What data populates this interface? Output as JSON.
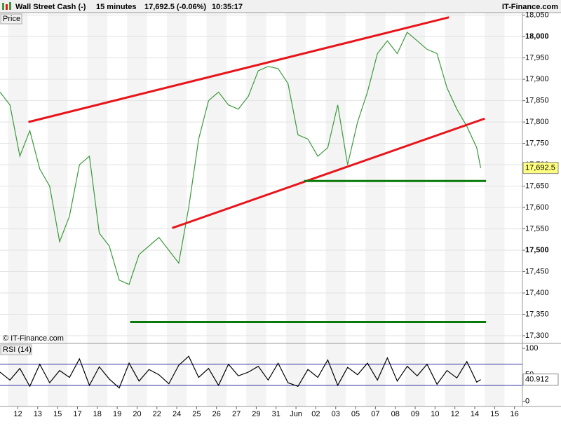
{
  "header": {
    "instrument": "Wall Street Cash (-)",
    "interval": "15 minutes",
    "quote": "17,692.5 (-0.06%)",
    "time": "10:35:17",
    "brand": "IT-Finance.com"
  },
  "chart_data": [
    {
      "type": "line",
      "title": "Price",
      "watermark": "© IT-Finance.com",
      "xlim": [
        -0.9,
        25.4
      ],
      "xticks": [
        {
          "value": 0,
          "label": "12"
        },
        {
          "value": 1,
          "label": "13"
        },
        {
          "value": 2,
          "label": "15"
        },
        {
          "value": 3,
          "label": "17"
        },
        {
          "value": 4,
          "label": "18"
        },
        {
          "value": 5,
          "label": "19"
        },
        {
          "value": 6,
          "label": "20"
        },
        {
          "value": 7,
          "label": "22"
        },
        {
          "value": 8,
          "label": "24"
        },
        {
          "value": 9,
          "label": "25"
        },
        {
          "value": 10,
          "label": "26"
        },
        {
          "value": 11,
          "label": "27"
        },
        {
          "value": 12,
          "label": "29"
        },
        {
          "value": 13,
          "label": "31"
        },
        {
          "value": 14,
          "label": "Jun"
        },
        {
          "value": 15,
          "label": "02"
        },
        {
          "value": 16,
          "label": "03"
        },
        {
          "value": 17,
          "label": "05"
        },
        {
          "value": 18,
          "label": "07"
        },
        {
          "value": 19,
          "label": "08"
        },
        {
          "value": 20,
          "label": "09"
        },
        {
          "value": 21,
          "label": "10"
        },
        {
          "value": 22,
          "label": "12"
        },
        {
          "value": 23,
          "label": "14"
        },
        {
          "value": 24,
          "label": "15"
        },
        {
          "value": 25,
          "label": "16"
        }
      ],
      "ylim": [
        17282,
        18056
      ],
      "yticks": [
        {
          "value": 17300,
          "label": "17,300"
        },
        {
          "value": 17350,
          "label": "17,350"
        },
        {
          "value": 17400,
          "label": "17,400"
        },
        {
          "value": 17450,
          "label": "17,450"
        },
        {
          "value": 17500,
          "label": "17,500"
        },
        {
          "value": 17550,
          "label": "17,550"
        },
        {
          "value": 17600,
          "label": "17,600"
        },
        {
          "value": 17650,
          "label": "17,650"
        },
        {
          "value": 17700,
          "label": "17,700"
        },
        {
          "value": 17750,
          "label": "17,750"
        },
        {
          "value": 17800,
          "label": "17,800"
        },
        {
          "value": 17850,
          "label": "17,850"
        },
        {
          "value": 17900,
          "label": "17,900"
        },
        {
          "value": 17950,
          "label": "17,950"
        },
        {
          "value": 18000,
          "label": "18,000"
        },
        {
          "value": 18050,
          "label": "18,050"
        }
      ],
      "grid": true,
      "x": [
        -0.9,
        -0.4,
        0.1,
        0.6,
        1.1,
        1.6,
        2.1,
        2.6,
        3.1,
        3.6,
        4.1,
        4.6,
        5.1,
        5.6,
        6.1,
        6.6,
        7.1,
        7.6,
        8.1,
        8.6,
        9.1,
        9.6,
        10.1,
        10.6,
        11.1,
        11.6,
        12.1,
        12.6,
        13.1,
        13.6,
        14.1,
        14.6,
        15.1,
        15.6,
        16.1,
        16.6,
        17.1,
        17.6,
        18.1,
        18.6,
        19.1,
        19.6,
        20.1,
        20.6,
        21.1,
        21.6,
        22.1,
        22.6,
        23.1,
        23.3
      ],
      "series": [
        {
          "color": "#3c9a3c",
          "values": [
            17870,
            17840,
            17720,
            17780,
            17690,
            17650,
            17520,
            17580,
            17700,
            17720,
            17540,
            17510,
            17430,
            17420,
            17490,
            17510,
            17530,
            17500,
            17470,
            17600,
            17760,
            17850,
            17870,
            17840,
            17830,
            17860,
            17920,
            17930,
            17925,
            17890,
            17770,
            17760,
            17720,
            17740,
            17840,
            17700,
            17800,
            17870,
            17960,
            17990,
            17960,
            18010,
            17990,
            17970,
            17960,
            17880,
            17830,
            17790,
            17740,
            17692.5
          ]
        }
      ],
      "last_price": {
        "value": 17692.5,
        "label": "17,692.5"
      },
      "lines": [
        {
          "color": "#e8141a",
          "x": [
            0.53,
            21.7
          ],
          "y": [
            17800,
            18045
          ]
        },
        {
          "color": "#e8141a",
          "x": [
            7.77,
            23.5
          ],
          "y": [
            17552,
            17808
          ]
        },
        {
          "color": "#0a7a0a",
          "x": [
            14.4,
            23.57
          ],
          "y": [
            17662,
            17662
          ]
        },
        {
          "color": "#0a7a0a",
          "x": [
            5.65,
            23.57
          ],
          "y": [
            17332,
            17332
          ]
        }
      ]
    },
    {
      "type": "line",
      "title": "RSI (14)",
      "xlim": [
        -0.9,
        25.4
      ],
      "ylim": [
        -10,
        108
      ],
      "yticks": [
        0,
        50,
        100
      ],
      "bands": [
        30,
        70
      ],
      "x": [
        -0.9,
        -0.4,
        0.1,
        0.6,
        1.1,
        1.6,
        2.1,
        2.6,
        3.1,
        3.6,
        4.1,
        4.6,
        5.1,
        5.6,
        6.1,
        6.6,
        7.1,
        7.6,
        8.1,
        8.6,
        9.1,
        9.6,
        10.1,
        10.6,
        11.1,
        11.6,
        12.1,
        12.6,
        13.1,
        13.6,
        14.1,
        14.6,
        15.1,
        15.6,
        16.1,
        16.6,
        17.1,
        17.6,
        18.1,
        18.6,
        19.1,
        19.6,
        20.1,
        20.6,
        21.1,
        21.6,
        22.1,
        22.6,
        23.1,
        23.3
      ],
      "series": [
        {
          "color": "#000000",
          "values": [
            55,
            40,
            62,
            28,
            70,
            35,
            58,
            45,
            80,
            30,
            65,
            42,
            25,
            72,
            38,
            60,
            50,
            33,
            68,
            85,
            45,
            62,
            30,
            70,
            48,
            55,
            66,
            40,
            72,
            35,
            28,
            60,
            45,
            78,
            30,
            64,
            50,
            72,
            40,
            82,
            38,
            66,
            48,
            70,
            32,
            58,
            44,
            75,
            36,
            40.912
          ]
        }
      ],
      "last_value": 40.912
    }
  ]
}
